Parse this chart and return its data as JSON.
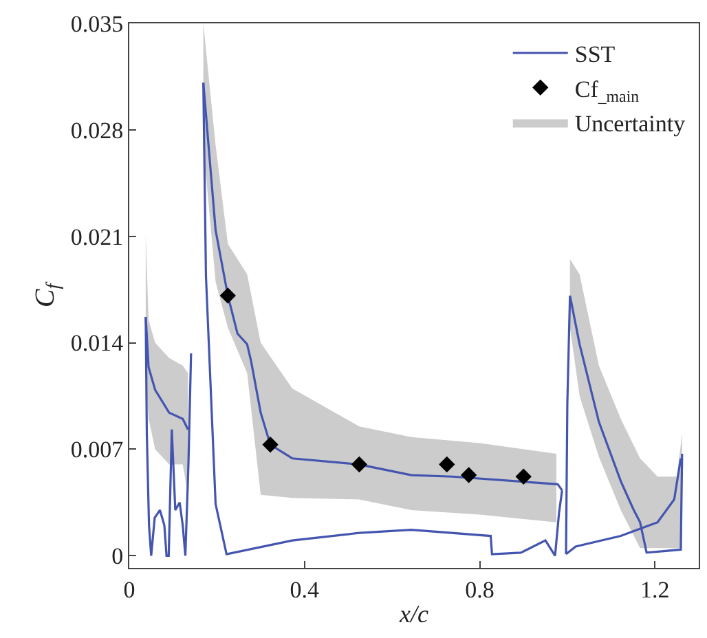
{
  "chart_data": {
    "type": "line",
    "xlabel": "x/c",
    "ylabel": "C$_{f}$",
    "xlim": [
      0,
      1.3
    ],
    "xticks": [
      0,
      0.4,
      0.8,
      1.2
    ],
    "ylim": [
      -0.0008,
      0.035
    ],
    "yticks": [
      0,
      0.007,
      0.014,
      0.021,
      0.028,
      0.035
    ],
    "legend": "top right",
    "series": [
      {
        "name": "SST",
        "color": "#4455b0",
        "marker": "none",
        "line_style": "solid",
        "x": [
          0.169,
          0.197,
          0.225,
          0.247,
          0.269,
          0.278,
          0.3,
          0.322,
          0.372,
          0.525,
          0.644,
          0.738,
          0.978,
          0.988
        ],
        "values": [
          0.0311,
          0.0214,
          0.0171,
          0.0146,
          0.0139,
          0.0128,
          0.0094,
          0.0073,
          0.0064,
          0.006,
          0.0053,
          0.0052,
          0.0047,
          0.0043
        ]
      },
      {
        "color": "#4455b0",
        "marker": "none",
        "line_style": "solid",
        "x": [
          0.169,
          0.175,
          0.197,
          0.222,
          0.372,
          0.525,
          0.644,
          0.825,
          0.828,
          0.894,
          0.95,
          0.972,
          0.981,
          0.988
        ],
        "values": [
          0.0311,
          0.0184,
          0.0034,
          0.0001,
          0.001,
          0.0015,
          0.0017,
          0.0013,
          0.0001,
          0.0002,
          0.001,
          0.0,
          0.0028,
          0.0043
        ]
      },
      {
        "color": "#4455b0",
        "marker": "none",
        "line_style": "solid",
        "x": [
          0.0375,
          0.044,
          0.059,
          0.091,
          0.122,
          0.134
        ],
        "values": [
          0.0157,
          0.0124,
          0.0109,
          0.0094,
          0.009,
          0.0083
        ]
      },
      {
        "color": "#4455b0",
        "marker": "none",
        "line_style": "solid",
        "x": [
          0.0375,
          0.04,
          0.045,
          0.05,
          0.058,
          0.07,
          0.08,
          0.085,
          0.09,
          0.097,
          0.105,
          0.115,
          0.122,
          0.128,
          0.135,
          0.141
        ],
        "values": [
          0.0157,
          0.008,
          0.002,
          0.0,
          0.0025,
          0.003,
          0.002,
          0.0,
          0.0,
          0.0083,
          0.003,
          0.0035,
          0.002,
          0.0,
          0.006,
          0.0133
        ]
      },
      {
        "color": "#4455b0",
        "marker": "none",
        "line_style": "solid",
        "x": [
          0.997,
          1.0,
          1.006,
          1.028,
          1.072,
          1.122,
          1.15,
          1.166,
          1.181,
          1.259,
          1.262
        ],
        "values": [
          0.0001,
          0.01,
          0.0171,
          0.0139,
          0.0088,
          0.0049,
          0.0031,
          0.0022,
          0.0002,
          0.0004,
          0.0067
        ]
      },
      {
        "color": "#4455b0",
        "marker": "none",
        "line_style": "solid",
        "x": [
          0.997,
          1.019,
          1.122,
          1.206,
          1.244,
          1.259
        ],
        "values": [
          0.0001,
          0.0006,
          0.0013,
          0.0022,
          0.0037,
          0.0064
        ]
      },
      {
        "name": "Cf$_{_main}$",
        "type": "scatter",
        "color": "#000000",
        "marker": "diamond",
        "x": [
          0.225,
          0.322,
          0.525,
          0.725,
          0.775,
          0.9
        ],
        "values": [
          0.0171,
          0.0073,
          0.006,
          0.006,
          0.0053,
          0.0052
        ]
      },
      {
        "name": "Uncertainty",
        "type": "area",
        "color": "#cccccc",
        "x": [
          0.0375,
          0.044,
          0.059,
          0.091,
          0.122,
          0.134,
          null,
          0.169,
          0.197,
          0.225,
          0.269,
          0.3,
          0.372,
          0.525,
          0.644,
          0.8,
          0.975,
          null,
          1.006,
          1.028,
          1.072,
          1.122,
          1.166,
          1.206,
          1.25,
          1.262
        ],
        "lower": [
          0.012,
          0.009,
          0.007,
          0.006,
          0.006,
          0.004,
          null,
          0.027,
          0.018,
          0.015,
          0.012,
          0.004,
          0.0038,
          0.0037,
          0.003,
          0.0027,
          0.0022,
          null,
          0.015,
          0.0105,
          0.0065,
          0.003,
          0.0005,
          0.0005,
          0.0005,
          0.0005
        ],
        "values": [
          null,
          null,
          null,
          null,
          null,
          null,
          null,
          null,
          null,
          null,
          null,
          null,
          null,
          null,
          null,
          null,
          null,
          null,
          null,
          null,
          null,
          null,
          null,
          null,
          null,
          null
        ],
        "upper": [
          0.0212,
          0.0155,
          0.014,
          0.013,
          0.0125,
          0.012,
          null,
          0.035,
          0.027,
          0.0205,
          0.0185,
          0.014,
          0.011,
          0.0085,
          0.0078,
          0.0074,
          0.0067,
          null,
          0.0195,
          0.0185,
          0.0125,
          0.009,
          0.0064,
          0.0052,
          0.0052,
          0.008
        ]
      }
    ]
  }
}
